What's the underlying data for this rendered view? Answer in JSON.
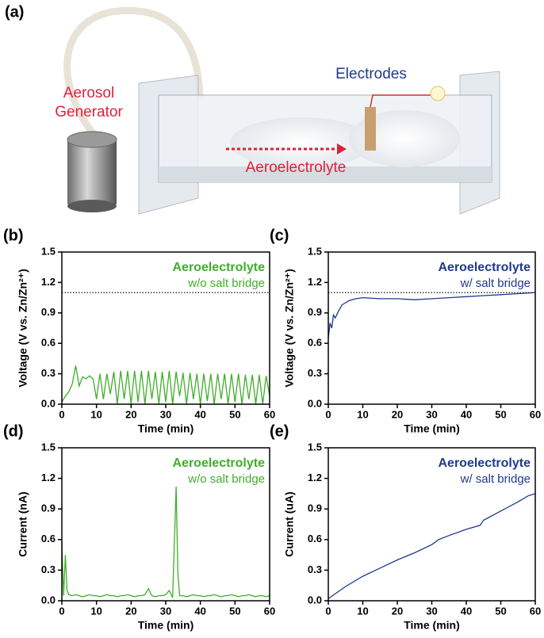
{
  "illustration": {
    "panel_label": "(a)",
    "generator_label": [
      "Aerosol",
      "Generator"
    ],
    "electrodes_label": "Electrodes",
    "flow_label": "Aeroelectrolyte"
  },
  "chart_data": [
    {
      "type": "line",
      "panel_label": "(b)",
      "annotation": "Aeroelectrolyte",
      "subannotation": "w/o salt bridge",
      "x_label": "Time (min)",
      "y_label": "Voltage (V vs. Zn/Zn²⁺)",
      "color": "#3fae2a",
      "xlim": [
        0,
        60
      ],
      "xticks": [
        0,
        10,
        20,
        30,
        40,
        50,
        60
      ],
      "ylim": [
        0,
        1.5
      ],
      "yticks": [
        {
          "value": 0,
          "label": "0.0"
        },
        0.3,
        0.6,
        0.9,
        1.2,
        1.5
      ],
      "reference_line": 1.1,
      "x": [
        0,
        1,
        2,
        3,
        4,
        5,
        6,
        7,
        8,
        9,
        10,
        11,
        12,
        13,
        14,
        15,
        16,
        17,
        18,
        19,
        20,
        21,
        22,
        23,
        24,
        25,
        26,
        27,
        28,
        29,
        30,
        31,
        32,
        33,
        34,
        35,
        36,
        37,
        38,
        39,
        40,
        41,
        42,
        43,
        44,
        45,
        46,
        47,
        48,
        49,
        50,
        51,
        52,
        53,
        54,
        55,
        56,
        57,
        58,
        59,
        60
      ],
      "values": [
        0.02,
        0.08,
        0.12,
        0.2,
        0.38,
        0.18,
        0.27,
        0.25,
        0.28,
        0.25,
        0.05,
        0.3,
        0.05,
        0.3,
        0.1,
        0.32,
        0.0,
        0.33,
        0.05,
        0.33,
        0.0,
        0.33,
        0.02,
        0.33,
        0.0,
        0.33,
        0.05,
        0.32,
        0.0,
        0.32,
        0.02,
        0.33,
        0.0,
        0.32,
        0.08,
        0.31,
        0.0,
        0.31,
        0.05,
        0.3,
        0.0,
        0.3,
        0.03,
        0.3,
        0.0,
        0.3,
        0.05,
        0.3,
        0.0,
        0.3,
        0.02,
        0.3,
        0.0,
        0.29,
        0.05,
        0.29,
        0.0,
        0.29,
        0.0,
        0.28,
        0.08
      ]
    },
    {
      "type": "line",
      "panel_label": "(c)",
      "annotation": "Aeroelectrolyte",
      "subannotation": "w/ salt bridge",
      "x_label": "Time (min)",
      "y_label": "Voltage (V vs. Zn/Zn²⁺)",
      "color": "#1f3a8f",
      "xlim": [
        0,
        60
      ],
      "xticks": [
        0,
        10,
        20,
        30,
        40,
        50,
        60
      ],
      "ylim": [
        0,
        1.5
      ],
      "yticks": [
        {
          "value": 0,
          "label": "0.0"
        },
        0.3,
        0.6,
        0.9,
        1.2,
        1.5
      ],
      "reference_line": 1.1,
      "x": [
        0,
        0.5,
        1,
        1.5,
        2,
        3,
        4,
        5,
        6,
        8,
        10,
        15,
        20,
        25,
        30,
        35,
        40,
        45,
        50,
        55,
        60
      ],
      "values": [
        0.65,
        0.8,
        0.75,
        0.88,
        0.85,
        0.92,
        0.98,
        1.0,
        1.02,
        1.04,
        1.05,
        1.04,
        1.04,
        1.03,
        1.04,
        1.05,
        1.06,
        1.07,
        1.08,
        1.09,
        1.1
      ]
    },
    {
      "type": "line",
      "panel_label": "(d)",
      "annotation": "Aeroelectrolyte",
      "subannotation": "w/o salt bridge",
      "x_label": "Time (min)",
      "y_label": "Current (nA)",
      "color": "#3fae2a",
      "xlim": [
        0,
        60
      ],
      "xticks": [
        0,
        10,
        20,
        30,
        40,
        50,
        60
      ],
      "ylim": [
        0,
        1.5
      ],
      "yticks": [
        {
          "value": 0,
          "label": "0.0"
        },
        0.3,
        0.6,
        0.9,
        1.2,
        1.5
      ],
      "x": [
        0,
        0.5,
        1,
        1.5,
        2,
        3,
        4,
        5,
        6,
        7,
        8,
        9,
        10,
        11,
        12,
        13,
        14,
        15,
        16,
        17,
        18,
        19,
        20,
        21,
        22,
        23,
        24,
        25,
        26,
        27,
        28,
        29,
        30,
        31,
        32,
        33,
        33.5,
        34,
        35,
        36,
        37,
        38,
        39,
        40,
        41,
        42,
        43,
        44,
        45,
        46,
        47,
        48,
        49,
        50,
        51,
        52,
        53,
        54,
        55,
        56,
        57,
        58,
        59,
        60
      ],
      "values": [
        0.58,
        0.05,
        0.45,
        0.1,
        0.06,
        0.05,
        0.06,
        0.05,
        0.04,
        0.05,
        0.06,
        0.05,
        0.05,
        0.04,
        0.05,
        0.06,
        0.05,
        0.05,
        0.04,
        0.05,
        0.05,
        0.06,
        0.05,
        0.04,
        0.05,
        0.05,
        0.06,
        0.12,
        0.05,
        0.04,
        0.05,
        0.05,
        0.06,
        0.1,
        0.03,
        1.12,
        0.27,
        0.05,
        0.05,
        0.04,
        0.05,
        0.06,
        0.05,
        0.05,
        0.04,
        0.05,
        0.05,
        0.06,
        0.05,
        0.04,
        0.05,
        0.05,
        0.06,
        0.05,
        0.04,
        0.05,
        0.05,
        0.06,
        0.05,
        0.04,
        0.05,
        0.05,
        0.04,
        0.05
      ]
    },
    {
      "type": "line",
      "panel_label": "(e)",
      "annotation": "Aeroelectrolyte",
      "subannotation": "w/ salt bridge",
      "x_label": "Time (min)",
      "y_label": "Current (uA)",
      "color": "#1f3a8f",
      "xlim": [
        0,
        60
      ],
      "xticks": [
        0,
        10,
        20,
        30,
        40,
        50,
        60
      ],
      "ylim": [
        0,
        1.5
      ],
      "yticks": [
        {
          "value": 0,
          "label": "0.0"
        },
        0.3,
        0.6,
        0.9,
        1.2,
        1.5
      ],
      "x": [
        0,
        5,
        10,
        15,
        20,
        25,
        30,
        32,
        35,
        40,
        44,
        45,
        50,
        55,
        58,
        60
      ],
      "values": [
        0.02,
        0.14,
        0.24,
        0.32,
        0.4,
        0.47,
        0.55,
        0.6,
        0.64,
        0.7,
        0.74,
        0.79,
        0.88,
        0.97,
        1.03,
        1.05
      ]
    }
  ]
}
